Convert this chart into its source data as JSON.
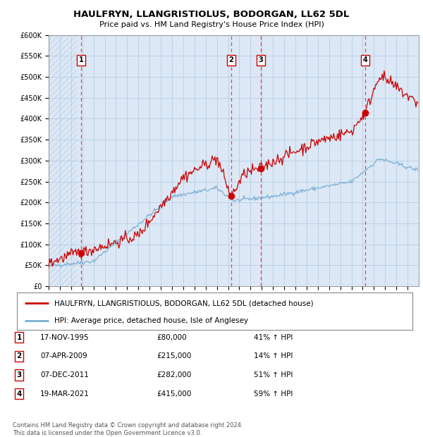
{
  "title": "HAULFRYN, LLANGRISTIOLUS, BODORGAN, LL62 5DL",
  "subtitle": "Price paid vs. HM Land Registry's House Price Index (HPI)",
  "ylim": [
    0,
    600000
  ],
  "yticks": [
    0,
    50000,
    100000,
    150000,
    200000,
    250000,
    300000,
    350000,
    400000,
    450000,
    500000,
    550000,
    600000
  ],
  "ytick_labels": [
    "£0",
    "£50K",
    "£100K",
    "£150K",
    "£200K",
    "£250K",
    "£300K",
    "£350K",
    "£400K",
    "£450K",
    "£500K",
    "£550K",
    "£600K"
  ],
  "hpi_color": "#7bafd4",
  "price_color": "#cc0000",
  "vline_color": "#ee3333",
  "sale_points": [
    {
      "year": 1995.88,
      "price": 80000,
      "label": "1"
    },
    {
      "year": 2009.27,
      "price": 215000,
      "label": "2"
    },
    {
      "year": 2011.93,
      "price": 282000,
      "label": "3"
    },
    {
      "year": 2021.22,
      "price": 415000,
      "label": "4"
    }
  ],
  "legend_price_label": "HAULFRYN, LLANGRISTIOLUS, BODORGAN, LL62 5DL (detached house)",
  "legend_hpi_label": "HPI: Average price, detached house, Isle of Anglesey",
  "table_rows": [
    {
      "num": "1",
      "date": "17-NOV-1995",
      "price": "£80,000",
      "hpi": "41% ↑ HPI"
    },
    {
      "num": "2",
      "date": "07-APR-2009",
      "price": "£215,000",
      "hpi": "14% ↑ HPI"
    },
    {
      "num": "3",
      "date": "07-DEC-2011",
      "price": "£282,000",
      "hpi": "51% ↑ HPI"
    },
    {
      "num": "4",
      "date": "19-MAR-2021",
      "price": "£415,000",
      "hpi": "59% ↑ HPI"
    }
  ],
  "footer": "Contains HM Land Registry data © Crown copyright and database right 2024.\nThis data is licensed under the Open Government Licence v3.0.",
  "bg_color": "#ffffff",
  "chart_bg": "#dce8f5",
  "grid_color": "#b0c8e0",
  "hatch_color": "#c8d8ea"
}
